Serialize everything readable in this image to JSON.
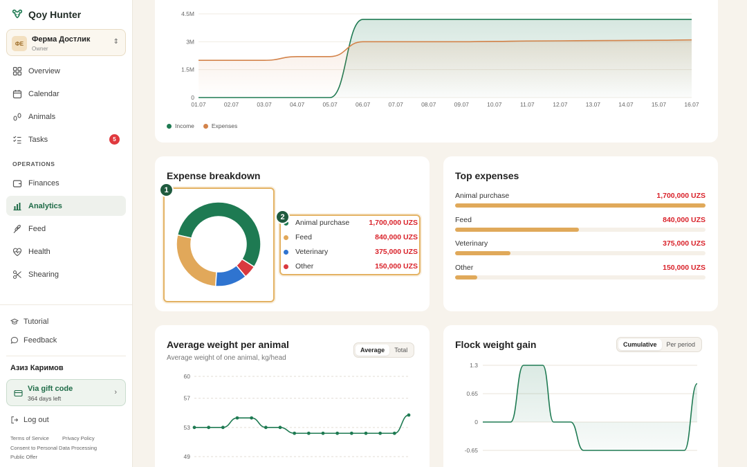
{
  "app": {
    "name": "Qoy Hunter"
  },
  "farm": {
    "initials": "ФЕ",
    "name": "Ферма Достлик",
    "role": "Owner"
  },
  "nav": {
    "items": [
      {
        "label": "Overview",
        "icon": "grid-icon"
      },
      {
        "label": "Calendar",
        "icon": "calendar-icon"
      },
      {
        "label": "Animals",
        "icon": "sheep-icon"
      },
      {
        "label": "Tasks",
        "icon": "checklist-icon",
        "badge": "5"
      }
    ],
    "section_label": "OPERATIONS",
    "ops": [
      {
        "label": "Finances",
        "icon": "wallet-icon"
      },
      {
        "label": "Analytics",
        "icon": "chart-icon",
        "active": true
      },
      {
        "label": "Feed",
        "icon": "wheat-icon"
      },
      {
        "label": "Health",
        "icon": "heart-pulse-icon"
      },
      {
        "label": "Shearing",
        "icon": "scissors-icon"
      }
    ]
  },
  "footer": {
    "tutorial": "Tutorial",
    "feedback": "Feedback",
    "user_name": "Азиз Каримов",
    "plan_title": "Via gift code",
    "plan_sub": "364 days left",
    "logout": "Log out",
    "terms": "Terms of Service",
    "privacy": "Privacy Policy",
    "consent": "Consent to Personal Data Processing",
    "offer": "Public Offer"
  },
  "cashflow": {
    "legend": [
      "Income",
      "Expenses"
    ],
    "colors": {
      "income": "#1e7a52",
      "expenses": "#d3834a"
    }
  },
  "chart_data": [
    {
      "type": "area",
      "x": [
        "01.07",
        "02.07",
        "03.07",
        "04.07",
        "05.07",
        "06.07",
        "07.07",
        "08.07",
        "09.07",
        "10.07",
        "11.07",
        "12.07",
        "13.07",
        "14.07",
        "15.07",
        "16.07"
      ],
      "yticks": [
        "0",
        "1.5M",
        "3M",
        "4.5M"
      ],
      "ylim": [
        0,
        4500000
      ],
      "series": [
        {
          "name": "Income",
          "values": [
            0,
            0,
            0,
            0,
            0,
            4200000,
            4200000,
            4200000,
            4200000,
            4200000,
            4200000,
            4200000,
            4200000,
            4200000,
            4200000,
            4200000
          ]
        },
        {
          "name": "Expenses",
          "values": [
            2000000,
            2000000,
            2000000,
            2200000,
            2200000,
            3000000,
            3000000,
            3000000,
            3000000,
            3020000,
            3040000,
            3050000,
            3060000,
            3070000,
            3080000,
            3100000
          ]
        }
      ],
      "legend": "bottom-left"
    },
    {
      "type": "pie",
      "title": "Expense breakdown",
      "categories": [
        "Animal purchase",
        "Feed",
        "Veterinary",
        "Other"
      ],
      "values": [
        1700000,
        840000,
        375000,
        150000
      ],
      "labels": [
        "1,700,000 UZS",
        "840,000 UZS",
        "375,000 UZS",
        "150,000 UZS"
      ],
      "colors": [
        "#1e7a52",
        "#e1a85a",
        "#2f74d0",
        "#d9393f"
      ]
    },
    {
      "type": "bar",
      "title": "Top expenses",
      "categories": [
        "Animal purchase",
        "Feed",
        "Veterinary",
        "Other"
      ],
      "values": [
        1700000,
        840000,
        375000,
        150000
      ],
      "labels": [
        "1,700,000 UZS",
        "840,000 UZS",
        "375,000 UZS",
        "150,000 UZS"
      ]
    },
    {
      "type": "line",
      "title": "Average weight per animal",
      "subtitle": "Average weight of one animal, kg/head",
      "yticks": [
        "49",
        "53",
        "57",
        "60"
      ],
      "ylim": [
        49,
        60
      ],
      "values": [
        53,
        53,
        53,
        54.3,
        54.3,
        53,
        53,
        52.2,
        52.2,
        52.2,
        52.2,
        52.2,
        52.2,
        52.2,
        52.2,
        54.7
      ],
      "toggle": [
        "Average",
        "Total"
      ],
      "toggle_selected": "Average"
    },
    {
      "type": "area",
      "title": "Flock weight gain",
      "yticks": [
        "1.3",
        "0.65",
        "0",
        "-0.65"
      ],
      "ylim": [
        -0.65,
        1.3
      ],
      "values": [
        0,
        0,
        1.3,
        1.3,
        0,
        0,
        -0.65,
        -0.65,
        -0.65,
        -0.65,
        -0.65,
        0.88
      ],
      "toggle": [
        "Cumulative",
        "Per period"
      ],
      "toggle_selected": "Cumulative"
    }
  ],
  "cards": {
    "breakdown_title": "Expense breakdown",
    "top_title": "Top expenses",
    "weight_title": "Average weight per animal",
    "weight_sub": "Average weight of one animal, kg/head",
    "gain_title": "Flock weight gain"
  },
  "markers": [
    "1",
    "2"
  ]
}
